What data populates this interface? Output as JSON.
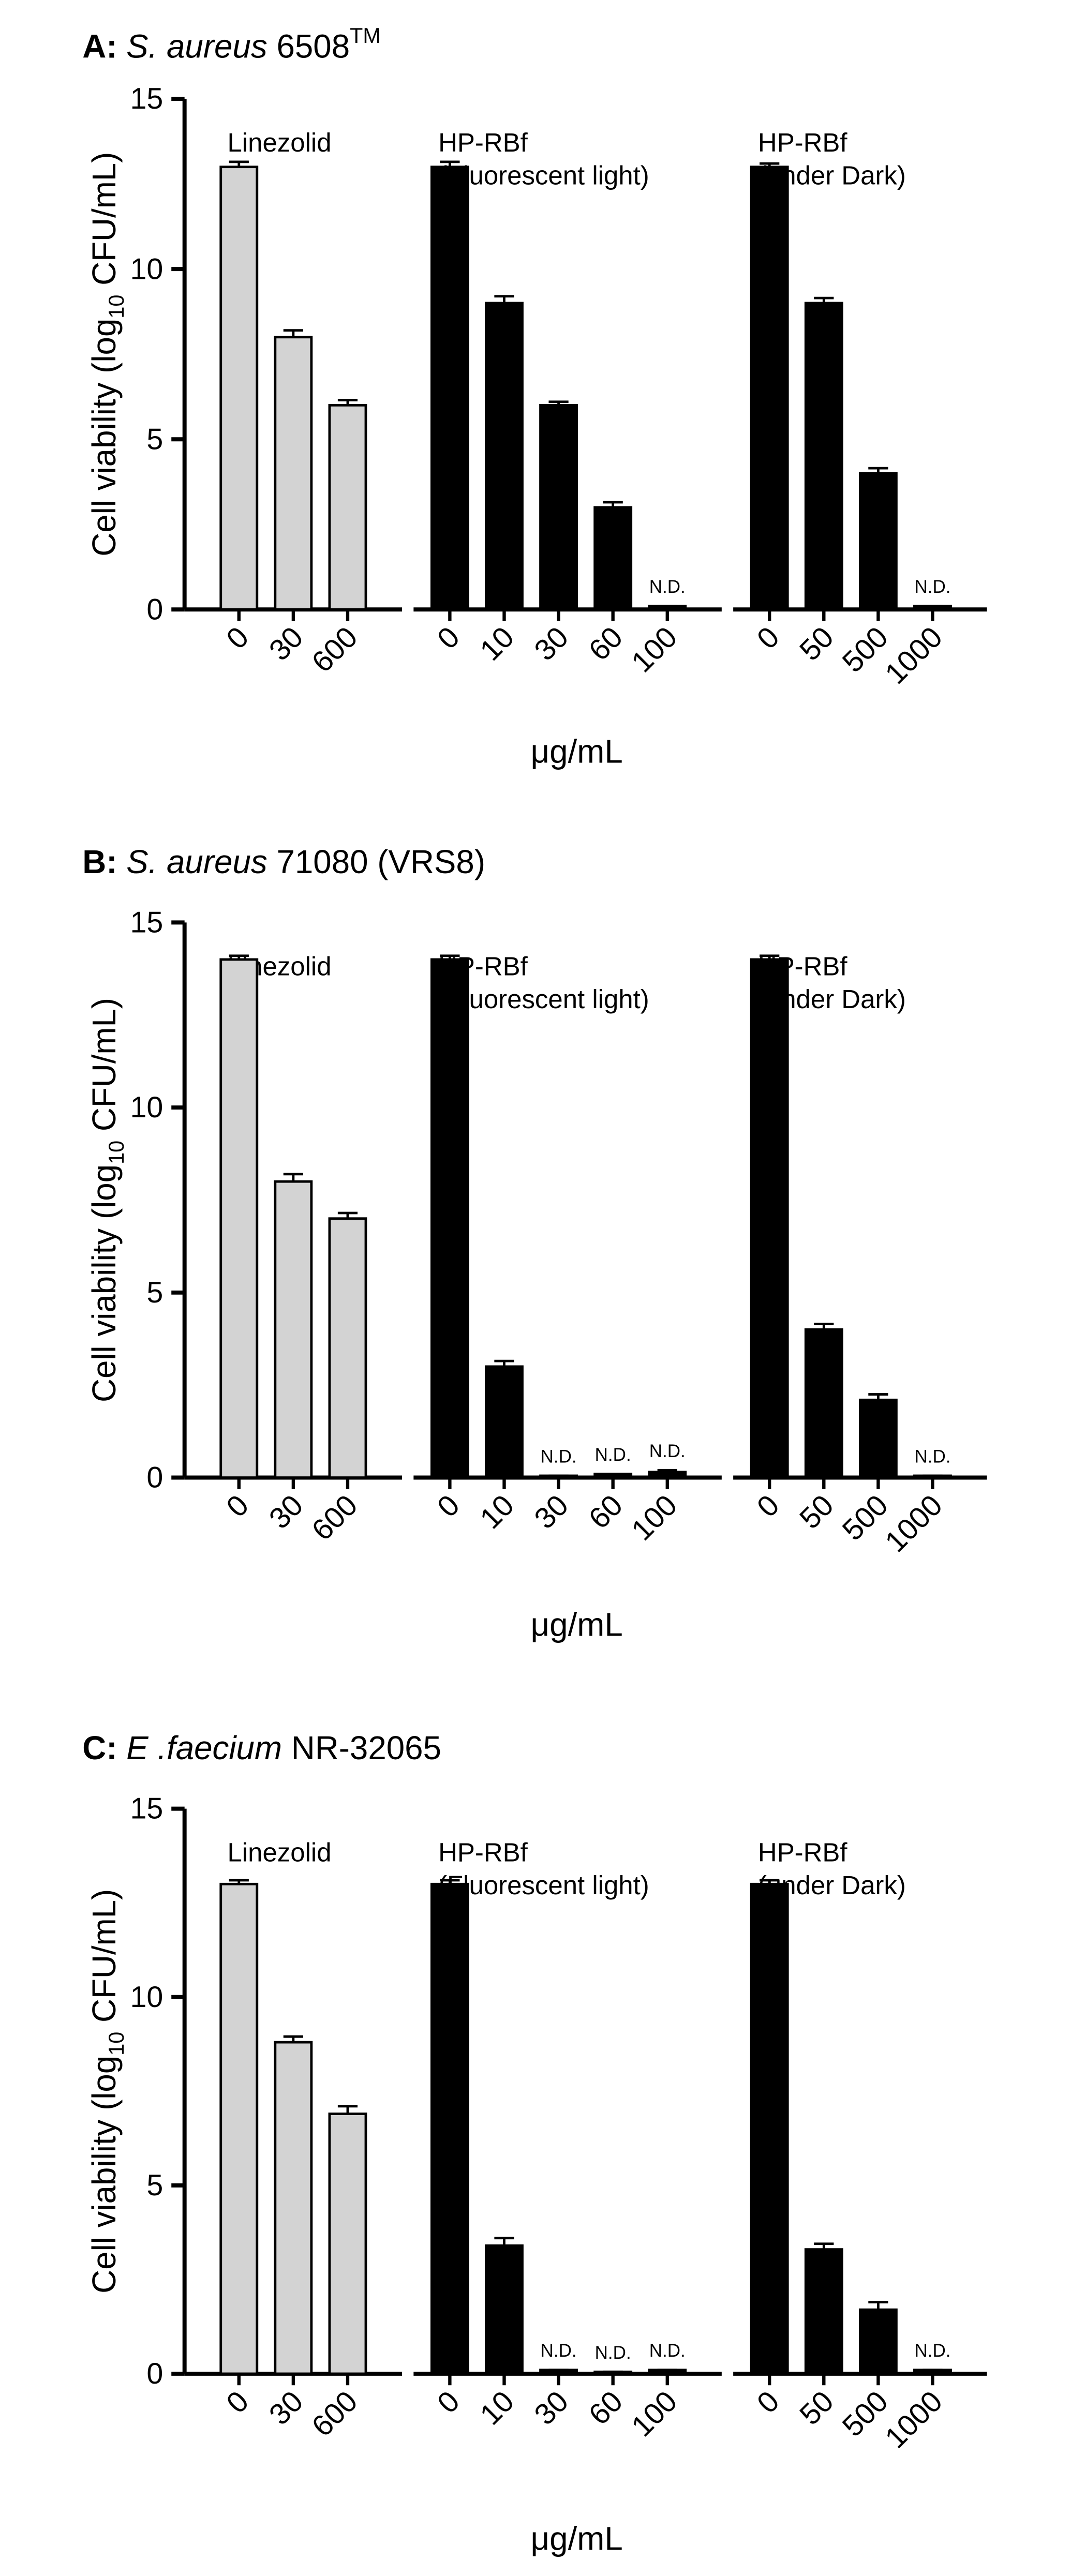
{
  "chart_data": [
    {
      "type": "bar",
      "title": {
        "letter": "A:",
        "organism": "S. aureus",
        "strain": "6508",
        "superscript": "TM"
      },
      "ylabel": {
        "before": "Cell viability (log",
        "sub": "10",
        "after": " CFU/mL)"
      },
      "xlabel": "μg/mL",
      "ylim": [
        0,
        15
      ],
      "yticks": [
        0,
        5,
        10,
        15
      ],
      "groups": [
        {
          "name": [
            "Linezolid"
          ],
          "color": "#d3d3d3",
          "categories": [
            "0",
            "30",
            "600"
          ],
          "values": [
            13,
            8,
            6
          ],
          "errors": [
            0.15,
            0.2,
            0.15
          ],
          "value_labels": [
            null,
            null,
            null
          ]
        },
        {
          "name": [
            "HP-RBf",
            "(Fluorescent light)"
          ],
          "color": "#000000",
          "categories": [
            "0",
            "10",
            "30",
            "60",
            "100"
          ],
          "values": [
            13,
            9,
            6,
            3,
            0.1
          ],
          "errors": [
            0.15,
            0.2,
            0.1,
            0.15,
            0
          ],
          "value_labels": [
            null,
            null,
            null,
            null,
            "N.D."
          ]
        },
        {
          "name": [
            "HP-RBf",
            "(under Dark)"
          ],
          "color": "#000000",
          "categories": [
            "0",
            "50",
            "500",
            "1000"
          ],
          "values": [
            13,
            9,
            4,
            0.1
          ],
          "errors": [
            0.1,
            0.15,
            0.15,
            0
          ],
          "value_labels": [
            null,
            null,
            null,
            "N.D."
          ]
        }
      ]
    },
    {
      "type": "bar",
      "title": {
        "letter": "B:",
        "organism": "S. aureus",
        "strain": "71080 (VRS8)"
      },
      "ylabel": {
        "before": "Cell viability (log",
        "sub": "10",
        "after": " CFU/mL)"
      },
      "xlabel": "μg/mL",
      "ylim": [
        0,
        15
      ],
      "yticks": [
        0,
        5,
        10,
        15
      ],
      "groups": [
        {
          "name": [
            "Linezolid"
          ],
          "color": "#d3d3d3",
          "categories": [
            "0",
            "30",
            "600"
          ],
          "values": [
            14,
            8,
            7
          ],
          "errors": [
            0.1,
            0.2,
            0.15
          ],
          "value_labels": [
            null,
            null,
            null
          ]
        },
        {
          "name": [
            "HP-RBf",
            "(Fluorescent light)"
          ],
          "color": "#000000",
          "categories": [
            "0",
            "10",
            "30",
            "60",
            "100"
          ],
          "values": [
            14,
            3,
            0.05,
            0.1,
            0.15
          ],
          "errors": [
            0.1,
            0.15,
            0,
            0,
            0.05
          ],
          "value_labels": [
            null,
            null,
            "N.D.",
            "N.D.",
            "N.D."
          ]
        },
        {
          "name": [
            "HP-RBf",
            "(under Dark)"
          ],
          "color": "#000000",
          "categories": [
            "0",
            "50",
            "500",
            "1000"
          ],
          "values": [
            14,
            4,
            2.1,
            0.05
          ],
          "errors": [
            0.1,
            0.15,
            0.15,
            0
          ],
          "value_labels": [
            null,
            null,
            null,
            "N.D."
          ]
        }
      ]
    },
    {
      "type": "bar",
      "title": {
        "letter": "C:",
        "organism": "E .faecium",
        "strain": "NR-32065"
      },
      "ylabel": {
        "before": "Cell viability (log",
        "sub": "10",
        "after": " CFU/mL)"
      },
      "xlabel": "μg/mL",
      "ylim": [
        0,
        15
      ],
      "yticks": [
        0,
        5,
        10,
        15
      ],
      "groups": [
        {
          "name": [
            "Linezolid"
          ],
          "color": "#d3d3d3",
          "categories": [
            "0",
            "30",
            "600"
          ],
          "values": [
            13,
            8.8,
            6.9
          ],
          "errors": [
            0.1,
            0.15,
            0.2
          ],
          "value_labels": [
            null,
            null,
            null
          ]
        },
        {
          "name": [
            "HP-RBf",
            "(Fluorescent light)"
          ],
          "color": "#000000",
          "categories": [
            "0",
            "10",
            "30",
            "60",
            "100"
          ],
          "values": [
            13,
            3.4,
            0.1,
            0.05,
            0.1
          ],
          "errors": [
            0.1,
            0.2,
            0,
            0,
            0
          ],
          "value_labels": [
            null,
            null,
            "N.D.",
            "N.D.",
            "N.D."
          ]
        },
        {
          "name": [
            "HP-RBf",
            "(under Dark)"
          ],
          "color": "#000000",
          "categories": [
            "0",
            "50",
            "500",
            "1000"
          ],
          "values": [
            13,
            3.3,
            1.7,
            0.1
          ],
          "errors": [
            0.1,
            0.15,
            0.2,
            0
          ],
          "value_labels": [
            null,
            null,
            null,
            "N.D."
          ]
        }
      ]
    }
  ]
}
